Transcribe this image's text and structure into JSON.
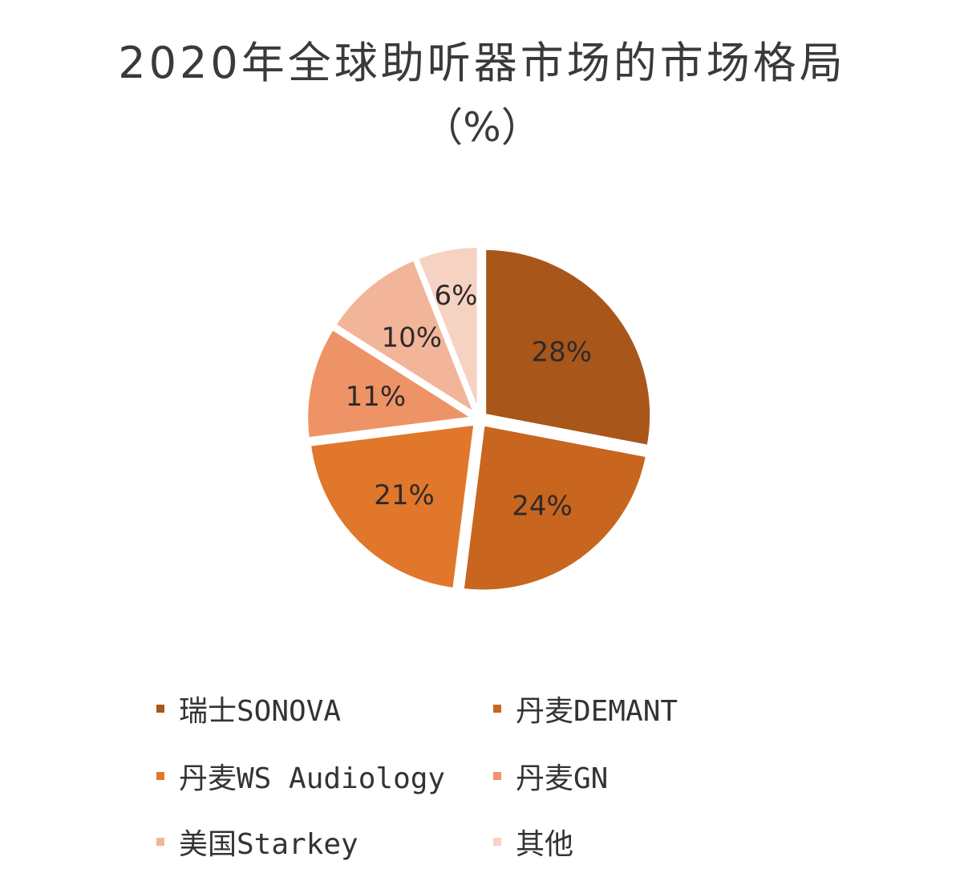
{
  "title": "2020年全球助听器市场的市场格局",
  "subtitle": "（%）",
  "chart_data": {
    "type": "pie",
    "title": "2020年全球助听器市场的市场格局（%）",
    "categories": [
      "瑞士SONOVA",
      "丹麦DEMANT",
      "丹麦WS Audiology",
      "丹麦GN",
      "美国Starkey",
      "其他"
    ],
    "values": [
      28,
      24,
      21,
      11,
      10,
      6
    ],
    "labels": [
      "28%",
      "24%",
      "21%",
      "11%",
      "10%",
      "6%"
    ],
    "colors": [
      "#A9561A",
      "#C8661F",
      "#E0772A",
      "#EE9366",
      "#F2B59A",
      "#F6D2C2"
    ],
    "start_angle": "12 o'clock, clockwise",
    "exploded": true,
    "legend_position": "bottom"
  },
  "legend": [
    {
      "label": "瑞士SONOVA",
      "color": "#A9561A"
    },
    {
      "label": "丹麦DEMANT",
      "color": "#C8661F"
    },
    {
      "label": "丹麦WS Audiology",
      "color": "#E0772A"
    },
    {
      "label": "丹麦GN",
      "color": "#EE9366"
    },
    {
      "label": "美国Starkey",
      "color": "#F2B59A"
    },
    {
      "label": "其他",
      "color": "#F6D2C2"
    }
  ]
}
